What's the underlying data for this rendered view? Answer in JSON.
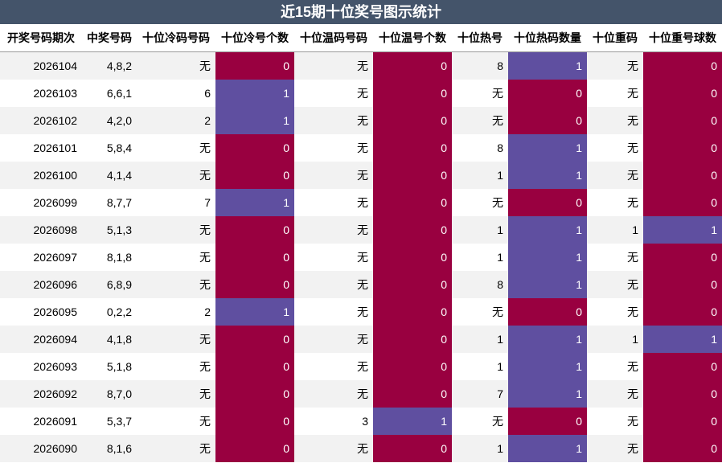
{
  "title": "近15期十位奖号图示统计",
  "colors": {
    "header_bg": "#44546a",
    "zero": "#990040",
    "one": "#5f4fa0"
  },
  "chart_data": {
    "type": "table",
    "columns": [
      "开奖号码期次",
      "中奖号码",
      "十位冷码号码",
      "十位冷号个数",
      "十位温码号码",
      "十位温号个数",
      "十位热号",
      "十位热码数量",
      "十位重码",
      "十位重号球数"
    ],
    "count_columns": [
      3,
      5,
      7,
      9
    ],
    "rows": [
      [
        "2026104",
        "4,8,2",
        "无",
        "0",
        "无",
        "0",
        "8",
        "1",
        "无",
        "0"
      ],
      [
        "2026103",
        "6,6,1",
        "6",
        "1",
        "无",
        "0",
        "无",
        "0",
        "无",
        "0"
      ],
      [
        "2026102",
        "4,2,0",
        "2",
        "1",
        "无",
        "0",
        "无",
        "0",
        "无",
        "0"
      ],
      [
        "2026101",
        "5,8,4",
        "无",
        "0",
        "无",
        "0",
        "8",
        "1",
        "无",
        "0"
      ],
      [
        "2026100",
        "4,1,4",
        "无",
        "0",
        "无",
        "0",
        "1",
        "1",
        "无",
        "0"
      ],
      [
        "2026099",
        "8,7,7",
        "7",
        "1",
        "无",
        "0",
        "无",
        "0",
        "无",
        "0"
      ],
      [
        "2026098",
        "5,1,3",
        "无",
        "0",
        "无",
        "0",
        "1",
        "1",
        "1",
        "1"
      ],
      [
        "2026097",
        "8,1,8",
        "无",
        "0",
        "无",
        "0",
        "1",
        "1",
        "无",
        "0"
      ],
      [
        "2026096",
        "6,8,9",
        "无",
        "0",
        "无",
        "0",
        "8",
        "1",
        "无",
        "0"
      ],
      [
        "2026095",
        "0,2,2",
        "2",
        "1",
        "无",
        "0",
        "无",
        "0",
        "无",
        "0"
      ],
      [
        "2026094",
        "4,1,8",
        "无",
        "0",
        "无",
        "0",
        "1",
        "1",
        "1",
        "1"
      ],
      [
        "2026093",
        "5,1,8",
        "无",
        "0",
        "无",
        "0",
        "1",
        "1",
        "无",
        "0"
      ],
      [
        "2026092",
        "8,7,0",
        "无",
        "0",
        "无",
        "0",
        "7",
        "1",
        "无",
        "0"
      ],
      [
        "2026091",
        "5,3,7",
        "无",
        "0",
        "3",
        "1",
        "无",
        "0",
        "无",
        "0"
      ],
      [
        "2026090",
        "8,1,6",
        "无",
        "0",
        "无",
        "0",
        "1",
        "1",
        "无",
        "0"
      ]
    ]
  }
}
